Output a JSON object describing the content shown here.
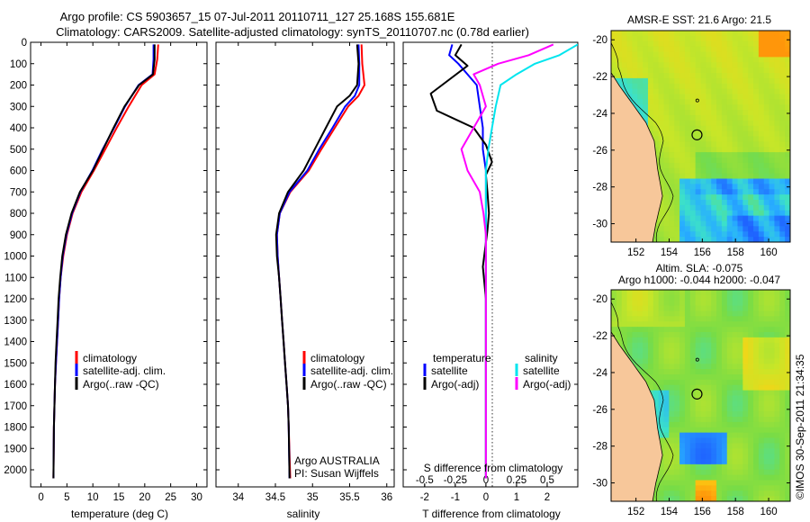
{
  "header": {
    "line1": "Argo profile: CS 5903657_15 07-Jul-2011 20110711_127 25.168S 155.681E",
    "line2": "Climatology: CARS2009. Satellite-adjusted climatology: synTS_20110707.nc (0.78d earlier)"
  },
  "colors": {
    "climatology": "#ff0000",
    "satellite": "#0000ff",
    "argo": "#000000",
    "salt_satellite": "#00e5ee",
    "salt_argo": "#ff00ff",
    "land": "#f7c79a"
  },
  "chart_data": [
    {
      "id": "temperature",
      "type": "line",
      "xlabel": "temperature (deg C)",
      "ylabel": "",
      "xlim": [
        -2,
        32
      ],
      "ylim": [
        2080,
        0
      ],
      "xticks": [
        "0",
        "5",
        "10",
        "15",
        "20",
        "25",
        "30"
      ],
      "yticks": [
        "0",
        "100",
        "200",
        "300",
        "400",
        "500",
        "600",
        "700",
        "800",
        "900",
        "1000",
        "1100",
        "1200",
        "1300",
        "1400",
        "1500",
        "1600",
        "1700",
        "1800",
        "1900",
        "2000"
      ],
      "legend": [
        "climatology",
        "satellite-adj. clim.",
        "Argo(..raw -QC)"
      ],
      "series": [
        {
          "name": "climatology",
          "color": "#ff0000",
          "x": [
            22.6,
            22.4,
            21.9,
            19.4,
            16.9,
            14.6,
            12.4,
            10.2,
            7.8,
            6.1,
            5.0,
            4.3,
            3.8,
            3.5,
            3.3,
            3.1,
            2.9,
            2.7,
            2.6,
            2.5,
            2.4
          ],
          "y": [
            10,
            80,
            150,
            200,
            300,
            400,
            500,
            600,
            700,
            800,
            900,
            1000,
            1100,
            1200,
            1300,
            1400,
            1500,
            1600,
            1700,
            1800,
            2040
          ]
        },
        {
          "name": "satellite-adj. clim.",
          "color": "#0000ff",
          "x": [
            21.7,
            21.7,
            21.5,
            18.8,
            16.2,
            14.1,
            11.9,
            9.9,
            7.6,
            6.0,
            4.9,
            4.2,
            3.8,
            3.5,
            3.3,
            3.1,
            2.9,
            2.7,
            2.6,
            2.5,
            2.4
          ],
          "y": [
            10,
            80,
            150,
            200,
            300,
            400,
            500,
            600,
            700,
            800,
            900,
            1000,
            1100,
            1200,
            1300,
            1400,
            1500,
            1600,
            1700,
            1800,
            2040
          ]
        },
        {
          "name": "Argo(..raw -QC)",
          "color": "#000000",
          "x": [
            21.9,
            21.9,
            21.6,
            18.9,
            16.1,
            14.0,
            12.0,
            10.0,
            7.5,
            5.9,
            4.8,
            4.1,
            3.7,
            3.4,
            3.2,
            3.0,
            2.8,
            2.7,
            2.6,
            2.5,
            2.4
          ],
          "y": [
            10,
            80,
            150,
            200,
            300,
            400,
            500,
            600,
            700,
            800,
            900,
            1000,
            1100,
            1200,
            1300,
            1400,
            1500,
            1600,
            1700,
            1800,
            2040
          ]
        }
      ]
    },
    {
      "id": "salinity",
      "type": "line",
      "xlabel": "salinity",
      "xlim": [
        33.7,
        36.1
      ],
      "ylim": [
        2080,
        0
      ],
      "xticks": [
        "34",
        "34.5",
        "35",
        "35.5",
        "36"
      ],
      "legend": [
        "climatology",
        "satellite-adj. clim.",
        "Argo(..raw -QC)"
      ],
      "annotation": [
        "Argo AUSTRALIA",
        "PI: Susan Wijffels"
      ],
      "series": [
        {
          "name": "climatology",
          "color": "#ff0000",
          "x": [
            35.66,
            35.67,
            35.7,
            35.62,
            35.48,
            35.3,
            35.12,
            34.95,
            34.7,
            34.56,
            34.52,
            34.53,
            34.55,
            34.57,
            34.59,
            34.61,
            34.63,
            34.65,
            34.67,
            34.68,
            34.7
          ],
          "y": [
            10,
            100,
            200,
            250,
            300,
            400,
            500,
            600,
            700,
            800,
            900,
            1000,
            1100,
            1200,
            1300,
            1400,
            1500,
            1600,
            1700,
            1800,
            2040
          ]
        },
        {
          "name": "satellite-adj. clim.",
          "color": "#0000ff",
          "x": [
            35.62,
            35.63,
            35.63,
            35.57,
            35.44,
            35.27,
            35.09,
            34.93,
            34.69,
            34.56,
            34.52,
            34.53,
            34.55,
            34.57,
            34.59,
            34.61,
            34.63,
            34.65,
            34.67,
            34.68,
            34.69
          ],
          "y": [
            10,
            100,
            200,
            250,
            300,
            400,
            500,
            600,
            700,
            800,
            900,
            1000,
            1100,
            1200,
            1300,
            1400,
            1500,
            1600,
            1700,
            1800,
            2040
          ]
        },
        {
          "name": "Argo(..raw -QC)",
          "color": "#000000",
          "x": [
            35.6,
            35.62,
            35.6,
            35.5,
            35.33,
            35.18,
            35.03,
            34.88,
            34.67,
            34.55,
            34.51,
            34.52,
            34.55,
            34.57,
            34.59,
            34.61,
            34.63,
            34.65,
            34.67,
            34.68,
            34.69
          ],
          "y": [
            10,
            100,
            200,
            250,
            300,
            400,
            500,
            600,
            700,
            800,
            900,
            1000,
            1100,
            1200,
            1300,
            1400,
            1500,
            1600,
            1700,
            1800,
            2040
          ]
        }
      ]
    },
    {
      "id": "differences",
      "type": "line",
      "xlabel": "T difference from climatology",
      "xlabel_top": "S difference from climatology",
      "xlim": [
        -2.7,
        3
      ],
      "ylim": [
        2080,
        0
      ],
      "xticks": [
        "-2",
        "-1",
        "0",
        "1",
        "2"
      ],
      "xticks_top": [
        "-0.5",
        "-0.25",
        "0",
        "0.25",
        "0.5"
      ],
      "legend_temperature_title": "temperature",
      "legend_salinity_title": "salinity",
      "legend": [
        "satellite",
        "Argo(-adj)",
        "satellite",
        "Argo(-adj)"
      ],
      "series": [
        {
          "name": "T satellite",
          "color": "#0000ff",
          "x": [
            -1.1,
            -1.2,
            -0.9,
            -0.6,
            -0.3,
            -0.2,
            -0.1,
            -0.1,
            0.0,
            0.0,
            0.0,
            0.0,
            0.0,
            0.0,
            0.0,
            0.0,
            0.0
          ],
          "y": [
            10,
            60,
            100,
            150,
            200,
            300,
            400,
            500,
            600,
            700,
            800,
            900,
            1000,
            1200,
            1500,
            1800,
            2040
          ]
        },
        {
          "name": "T Argo(-adj)",
          "color": "#000000",
          "x": [
            -0.8,
            -1.0,
            -0.6,
            -1.8,
            -1.6,
            -0.4,
            0.0,
            0.2,
            0.0,
            0.05,
            0.1,
            0.05,
            -0.1,
            0.0,
            0.0,
            0.0,
            0.0
          ],
          "y": [
            10,
            60,
            110,
            240,
            320,
            400,
            480,
            560,
            620,
            700,
            800,
            880,
            1050,
            1200,
            1500,
            1800,
            2040
          ]
        },
        {
          "name": "S satellite",
          "color": "#00e5ee",
          "x": [
            0.75,
            0.6,
            0.4,
            0.25,
            0.12,
            0.08,
            0.05,
            0.02,
            0.0,
            0.0,
            0.0,
            0.0,
            0.0,
            0.0,
            0.0,
            0.0,
            0.0
          ],
          "y": [
            10,
            60,
            100,
            150,
            200,
            300,
            400,
            500,
            600,
            700,
            800,
            900,
            1000,
            1200,
            1500,
            1800,
            2040
          ]
        },
        {
          "name": "S Argo(-adj)",
          "color": "#ff00ff",
          "x": [
            0.55,
            0.35,
            0.1,
            -0.1,
            -0.05,
            0.0,
            -0.1,
            -0.2,
            -0.15,
            -0.05,
            -0.02,
            0.0,
            0.0,
            0.0,
            0.0,
            0.0,
            0.0
          ],
          "y": [
            10,
            60,
            100,
            150,
            200,
            300,
            400,
            500,
            600,
            700,
            800,
            900,
            1000,
            1200,
            1500,
            1800,
            2040
          ]
        }
      ]
    },
    {
      "id": "sst_map",
      "type": "heatmap",
      "title": "AMSR-E SST: 21.6  Argo: 21.5",
      "xticks": [
        "152",
        "154",
        "156",
        "158",
        "160"
      ],
      "yticks": [
        "-20",
        "-22",
        "-24",
        "-26",
        "-28",
        "-30"
      ],
      "xlim": [
        150.5,
        161.3
      ],
      "ylim": [
        -31.0,
        -19.5
      ],
      "argo_position": {
        "lon": 155.68,
        "lat": -25.17
      }
    },
    {
      "id": "sla_map",
      "type": "heatmap",
      "title": "Altim. SLA: -0.075",
      "subtitle": "Argo h1000: -0.044  h2000: -0.047",
      "xticks": [
        "152",
        "154",
        "156",
        "158",
        "160"
      ],
      "yticks": [
        "-20",
        "-22",
        "-24",
        "-26",
        "-28",
        "-30"
      ],
      "xlim": [
        150.5,
        161.3
      ],
      "ylim": [
        -31.0,
        -19.5
      ],
      "argo_position": {
        "lon": 155.68,
        "lat": -25.17
      }
    }
  ],
  "footer": {
    "credit": "©IMOS 30-Sep-2011 21:34:35"
  }
}
